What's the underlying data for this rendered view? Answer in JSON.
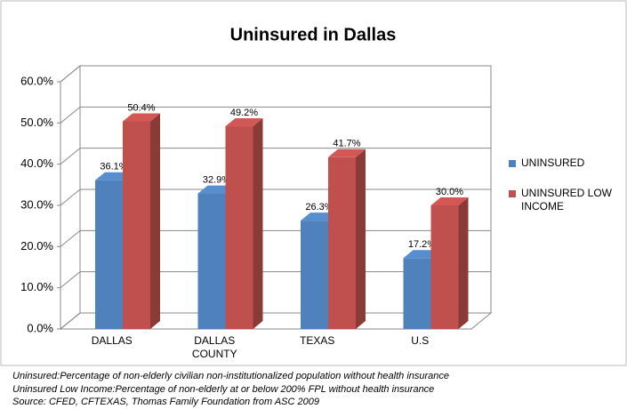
{
  "chart_data": {
    "type": "bar3d",
    "title": "Uninsured in Dallas",
    "categories": [
      "DALLAS",
      "DALLAS COUNTY",
      "TEXAS",
      "U.S"
    ],
    "series": [
      {
        "name": "UNINSURED",
        "color": "#4f81bd",
        "values": [
          36.1,
          32.9,
          26.3,
          17.2
        ],
        "value_labels": [
          "36.1%",
          "32.9%",
          "26.3%",
          "17.2%"
        ]
      },
      {
        "name": "UNINSURED LOW INCOME",
        "color": "#c0504d",
        "values": [
          50.4,
          49.2,
          41.7,
          30.0
        ],
        "value_labels": [
          "50.4%",
          "49.2%",
          "41.7%",
          "30.0%"
        ]
      }
    ],
    "ylim": [
      0,
      60
    ],
    "yticks": [
      {
        "value": 0,
        "label": "0.0%"
      },
      {
        "value": 10,
        "label": "10.0%"
      },
      {
        "value": 20,
        "label": "20.0%"
      },
      {
        "value": 30,
        "label": "30.0%"
      },
      {
        "value": 40,
        "label": "40.0%"
      },
      {
        "value": 50,
        "label": "50.0%"
      },
      {
        "value": 60,
        "label": "60.0%"
      }
    ],
    "grid": true,
    "legend": "right",
    "notes": [
      "Uninsured:Percentage of non-elderly civilian non-institutionalized population without health insurance",
      "Uninsured Low Income:Percentage of non-elderly at or below 200% FPL without health insurance",
      "Source: CFED, CFTEXAS, Thomas Family Foundation from ASC 2009"
    ]
  }
}
